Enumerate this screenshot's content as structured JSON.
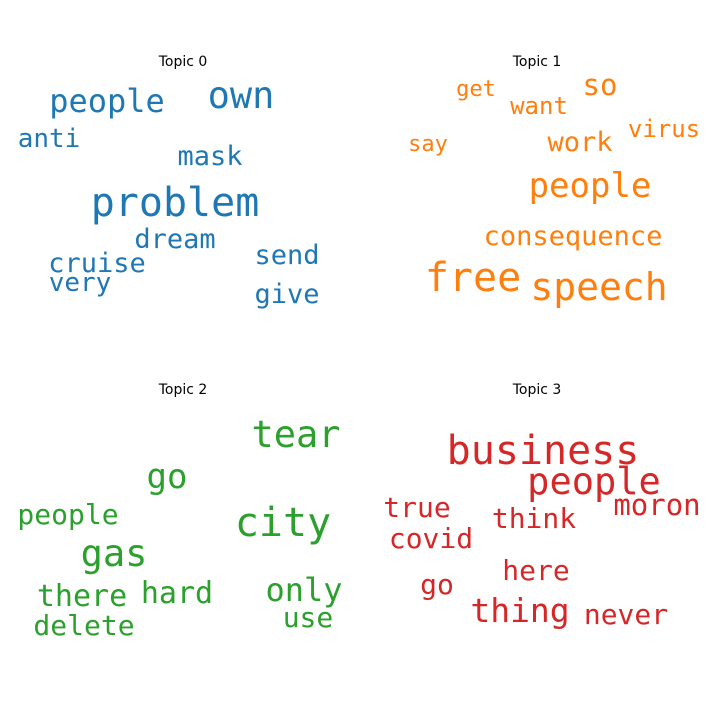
{
  "chart_data": {
    "type": "wordcloud",
    "panels": [
      {
        "title": "Topic 0",
        "color": "#1f77b4",
        "words": [
          {
            "text": "problem",
            "weight": 1.0
          },
          {
            "text": "own",
            "weight": 0.93
          },
          {
            "text": "people",
            "weight": 0.8
          },
          {
            "text": "mask",
            "weight": 0.67
          },
          {
            "text": "send",
            "weight": 0.67
          },
          {
            "text": "dream",
            "weight": 0.67
          },
          {
            "text": "give",
            "weight": 0.67
          },
          {
            "text": "cruise",
            "weight": 0.67
          },
          {
            "text": "anti",
            "weight": 0.65
          },
          {
            "text": "very",
            "weight": 0.65
          }
        ]
      },
      {
        "title": "Topic 1",
        "color": "#ff7f0e",
        "words": [
          {
            "text": "free",
            "weight": 1.0
          },
          {
            "text": "speech",
            "weight": 0.96
          },
          {
            "text": "people",
            "weight": 0.87
          },
          {
            "text": "consequence",
            "weight": 0.7
          },
          {
            "text": "so",
            "weight": 0.72
          },
          {
            "text": "work",
            "weight": 0.7
          },
          {
            "text": "want",
            "weight": 0.6
          },
          {
            "text": "virus",
            "weight": 0.6
          },
          {
            "text": "get",
            "weight": 0.55
          },
          {
            "text": "say",
            "weight": 0.55
          }
        ]
      },
      {
        "title": "Topic 2",
        "color": "#2ca02c",
        "words": [
          {
            "text": "city",
            "weight": 1.0
          },
          {
            "text": "tear",
            "weight": 0.93
          },
          {
            "text": "gas",
            "weight": 0.93
          },
          {
            "text": "go",
            "weight": 0.85
          },
          {
            "text": "only",
            "weight": 0.8
          },
          {
            "text": "hard",
            "weight": 0.75
          },
          {
            "text": "there",
            "weight": 0.75
          },
          {
            "text": "people",
            "weight": 0.7
          },
          {
            "text": "use",
            "weight": 0.7
          },
          {
            "text": "delete",
            "weight": 0.7
          }
        ]
      },
      {
        "title": "Topic 3",
        "color": "#d62728",
        "words": [
          {
            "text": "business",
            "weight": 1.0
          },
          {
            "text": "people",
            "weight": 0.92
          },
          {
            "text": "thing",
            "weight": 0.82
          },
          {
            "text": "moron",
            "weight": 0.72
          },
          {
            "text": "think",
            "weight": 0.7
          },
          {
            "text": "true",
            "weight": 0.7
          },
          {
            "text": "covid",
            "weight": 0.7
          },
          {
            "text": "here",
            "weight": 0.7
          },
          {
            "text": "never",
            "weight": 0.7
          },
          {
            "text": "go",
            "weight": 0.7
          }
        ]
      }
    ]
  }
}
